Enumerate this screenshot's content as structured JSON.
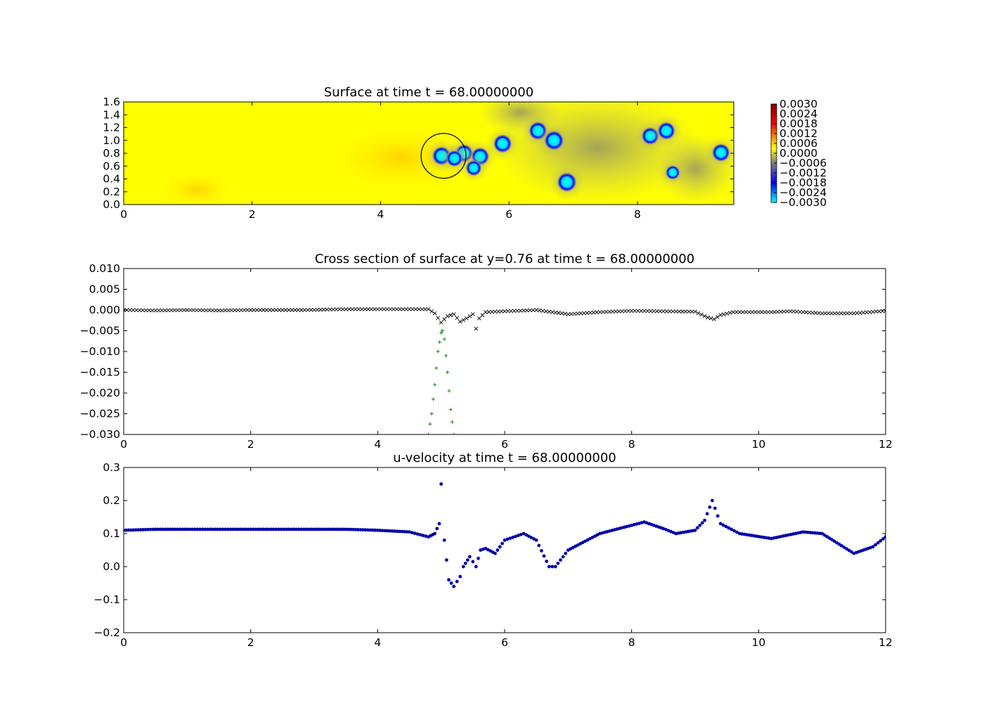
{
  "chart_data": [
    {
      "type": "heatmap",
      "title": "Surface at time t =    68.00000000",
      "xlim": [
        0,
        9.5
      ],
      "ylim": [
        0,
        1.6
      ],
      "x_ticks": [
        "0",
        "2",
        "4",
        "6",
        "8"
      ],
      "y_ticks": [
        "0.0",
        "0.2",
        "0.4",
        "0.6",
        "0.8",
        "1.0",
        "1.2",
        "1.4",
        "1.6"
      ],
      "colorbar_ticks": [
        "0.0030",
        "0.0024",
        "0.0018",
        "0.0012",
        "0.0006",
        "0.0000",
        "−0.0006",
        "−0.0012",
        "−0.0018",
        "−0.0024",
        "−0.0030"
      ],
      "colorbar_range": [
        -0.003,
        0.003
      ],
      "colormap": [
        "#00ffff",
        "#0000ff",
        "#808080",
        "#ffff00",
        "#ff0000",
        "#800000"
      ],
      "circle": {
        "cx": 4.98,
        "cy": 0.76,
        "r": 0.35
      },
      "spots": [
        {
          "x": 4.95,
          "y": 0.76,
          "value": -0.0028
        },
        {
          "x": 5.3,
          "y": 0.8,
          "value": -0.0026
        },
        {
          "x": 5.15,
          "y": 0.72,
          "value": -0.0022
        },
        {
          "x": 5.55,
          "y": 0.75,
          "value": -0.0026
        },
        {
          "x": 5.45,
          "y": 0.57,
          "value": -0.002
        },
        {
          "x": 5.9,
          "y": 0.95,
          "value": -0.0027
        },
        {
          "x": 6.45,
          "y": 1.15,
          "value": -0.0027
        },
        {
          "x": 6.7,
          "y": 1.0,
          "value": -0.003
        },
        {
          "x": 6.9,
          "y": 0.35,
          "value": -0.003
        },
        {
          "x": 8.2,
          "y": 1.07,
          "value": -0.0025
        },
        {
          "x": 8.45,
          "y": 1.15,
          "value": -0.0025
        },
        {
          "x": 8.55,
          "y": 0.5,
          "value": -0.0016
        },
        {
          "x": 9.3,
          "y": 0.81,
          "value": -0.0026
        }
      ]
    },
    {
      "type": "scatter",
      "title": "Cross section of surface at y=0.76 at time t =    68.00000000",
      "xlim": [
        0,
        12
      ],
      "ylim": [
        -0.03,
        0.01
      ],
      "x_ticks": [
        "0",
        "2",
        "4",
        "6",
        "8",
        "10",
        "12"
      ],
      "y_ticks": [
        "0.010",
        "0.005",
        "0.000",
        "−0.005",
        "−0.010",
        "−0.015",
        "−0.020",
        "−0.025",
        "−0.030"
      ],
      "series": [
        {
          "marker": "x",
          "color": "#000000",
          "x": [
            0,
            0.5,
            1,
            1.5,
            2,
            2.5,
            2.8,
            3.5,
            4,
            4.5,
            4.8,
            4.9,
            5.0,
            5.1,
            5.2,
            5.3,
            5.4,
            5.5,
            5.55,
            5.6,
            5.7,
            6,
            6.5,
            7,
            7.5,
            8,
            8.5,
            9,
            9.2,
            9.3,
            9.4,
            9.6,
            10,
            10.2,
            10.5,
            11,
            11.5,
            12
          ],
          "y": [
            0.0,
            -0.0001,
            0.0,
            -0.0001,
            0.0,
            0.0,
            0.0,
            0.0002,
            0.0002,
            0.0002,
            0.0002,
            -0.0008,
            -0.003,
            -0.0015,
            -0.001,
            -0.0028,
            -0.002,
            -0.001,
            -0.0045,
            -0.002,
            -0.0005,
            -0.0003,
            0.0,
            -0.001,
            -0.0005,
            -0.0002,
            -0.0003,
            -0.0004,
            -0.0018,
            -0.0022,
            -0.0012,
            -0.0005,
            -0.0005,
            -0.0005,
            -0.0003,
            -0.0008,
            -0.0008,
            -0.0002
          ]
        },
        {
          "marker": "+",
          "color": "#008000",
          "x": [
            4.8,
            4.85,
            4.9,
            4.95,
            5.0,
            5.02,
            5.05,
            5.1,
            5.15,
            5.2
          ],
          "y": [
            -0.03,
            -0.025,
            -0.018,
            -0.01,
            -0.0055,
            -0.005,
            -0.007,
            -0.015,
            -0.024,
            -0.03
          ]
        }
      ]
    },
    {
      "type": "scatter",
      "title": "u-velocity at time t =    68.00000000",
      "xlim": [
        0,
        12
      ],
      "ylim": [
        -0.2,
        0.3
      ],
      "x_ticks": [
        "0",
        "2",
        "4",
        "6",
        "8",
        "10",
        "12"
      ],
      "y_ticks": [
        "0.3",
        "0.2",
        "0.1",
        "0.0",
        "−0.1",
        "−0.2"
      ],
      "series": [
        {
          "marker": "o",
          "color": "#0000aa",
          "x": [
            0,
            0.5,
            1,
            2,
            2.8,
            3.5,
            4,
            4.5,
            4.8,
            4.9,
            4.97,
            5.0,
            5.05,
            5.12,
            5.2,
            5.3,
            5.35,
            5.45,
            5.55,
            5.62,
            5.7,
            5.85,
            6.0,
            6.3,
            6.5,
            6.7,
            6.8,
            7.0,
            7.5,
            8.0,
            8.2,
            8.5,
            8.7,
            9.0,
            9.15,
            9.27,
            9.4,
            9.7,
            10.2,
            10.7,
            11.0,
            11.5,
            11.8,
            12
          ],
          "y": [
            0.11,
            0.113,
            0.113,
            0.113,
            0.113,
            0.113,
            0.11,
            0.105,
            0.09,
            0.1,
            0.13,
            0.25,
            0.08,
            -0.04,
            -0.06,
            -0.03,
            0.0,
            0.03,
            0.0,
            0.05,
            0.055,
            0.04,
            0.08,
            0.1,
            0.08,
            0.0,
            0.0,
            0.05,
            0.1,
            0.125,
            0.135,
            0.115,
            0.1,
            0.11,
            0.14,
            0.2,
            0.13,
            0.1,
            0.085,
            0.105,
            0.1,
            0.04,
            0.06,
            0.09
          ]
        }
      ]
    }
  ]
}
